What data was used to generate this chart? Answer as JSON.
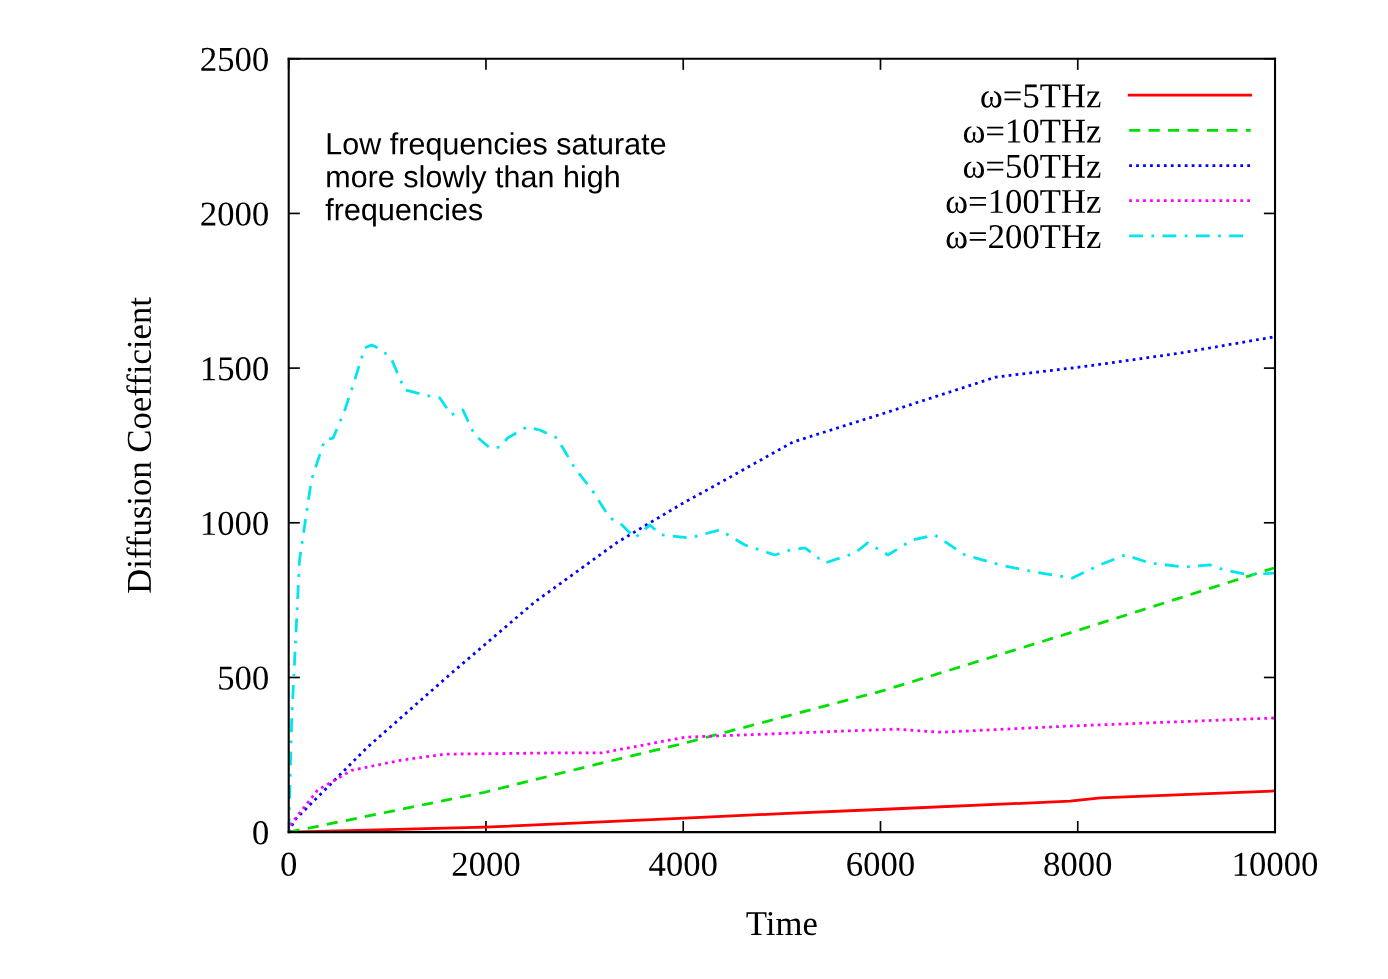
{
  "chart_data": {
    "type": "line",
    "xlabel": "Time",
    "ylabel": "Diffusion Coefficient",
    "xlim": [
      0,
      10000
    ],
    "xticks": [
      0,
      2000,
      4000,
      6000,
      8000,
      10000
    ],
    "ylim": [
      0,
      2500
    ],
    "yticks": [
      0,
      500,
      1000,
      1500,
      2000,
      2500
    ],
    "grid": false,
    "legend": "top right",
    "marker": "none",
    "annotations": [
      "Low frequencies saturate\nmore slowly than high\nfrequencies"
    ],
    "series": [
      {
        "name": "ω=5THz",
        "color": "#ff0000",
        "line_style": "solid",
        "x": [
          0,
          1988,
          4016,
          5000,
          6045,
          7921,
          8230,
          9990
        ],
        "values": [
          0,
          16,
          45,
          60,
          74,
          100,
          111,
          133
        ]
      },
      {
        "name": "ω=10THz",
        "color": "#00e000",
        "line_style": "dashed",
        "x": [
          0,
          1988,
          3002,
          4016,
          6045,
          7921,
          9990
        ],
        "values": [
          0,
          129,
          210,
          288,
          459,
          644,
          854
        ]
      },
      {
        "name": "ω=50THz",
        "color": "#0000ff",
        "line_style": "dotted",
        "x": [
          0,
          61,
          800,
          1650,
          2495,
          3337,
          4016,
          4168,
          5112,
          6045,
          7170,
          8114,
          9047,
          9990
        ],
        "values": [
          0,
          39,
          275,
          514,
          744,
          938,
          1067,
          1093,
          1261,
          1355,
          1471,
          1507,
          1549,
          1601
        ]
      },
      {
        "name": "ω=100THz",
        "color": "#ff00ff",
        "line_style": "dotted",
        "x": [
          0,
          30,
          294,
          639,
          1146,
          1582,
          2667,
          3174,
          4016,
          6156,
          6613,
          7921,
          9990
        ],
        "values": [
          0,
          29,
          136,
          200,
          233,
          252,
          256,
          256,
          307,
          333,
          323,
          343,
          369
        ]
      },
      {
        "name": "ω=200THz",
        "color": "#00e5ee",
        "line_style": "dashdot",
        "x": [
          0,
          30,
          110,
          230,
          365,
          450,
          570,
          670,
          770,
          840,
          945,
          1045,
          1175,
          1380,
          1530,
          1650,
          1765,
          1885,
          2040,
          2140,
          2220,
          2415,
          2545,
          2720,
          2900,
          3075,
          3255,
          3360,
          3510,
          3660,
          3780,
          4070,
          4370,
          4625,
          4930,
          5085,
          5235,
          5435,
          5740,
          5870,
          6075,
          6320,
          6550,
          6855,
          7210,
          7565,
          7940,
          8225,
          8480,
          8730,
          9085,
          9340,
          9490,
          9745,
          10000
        ],
        "values": [
          0,
          362,
          880,
          1138,
          1268,
          1274,
          1365,
          1462,
          1565,
          1575,
          1559,
          1527,
          1430,
          1413,
          1404,
          1349,
          1365,
          1284,
          1242,
          1245,
          1274,
          1310,
          1300,
          1274,
          1177,
          1106,
          1016,
          999,
          951,
          993,
          961,
          951,
          977,
          928,
          896,
          912,
          919,
          870,
          902,
          935,
          896,
          944,
          961,
          896,
          864,
          841,
          821,
          864,
          896,
          870,
          857,
          864,
          847,
          831,
          838
        ]
      }
    ]
  }
}
